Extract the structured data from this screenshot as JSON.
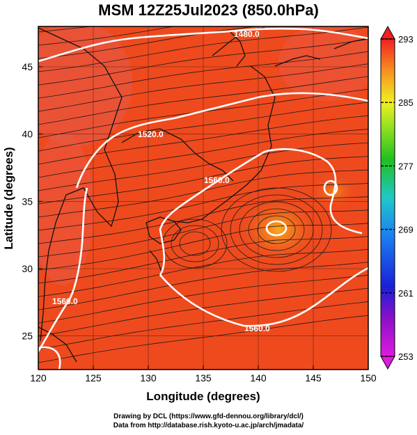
{
  "title": "MSM 12Z25Jul2023 (850.0hPa)",
  "xlabel": "Longitude (degrees)",
  "ylabel": "Latitude  (degrees)",
  "x_ticks": [
    "120",
    "125",
    "130",
    "135",
    "140",
    "145",
    "150"
  ],
  "y_ticks": [
    "25",
    "30",
    "35",
    "40",
    "45"
  ],
  "colorbar_ticks": [
    "293",
    "285",
    "277",
    "269",
    "261",
    "253"
  ],
  "contour_labels": [
    "1480.0",
    "1520.0",
    "1560.0",
    "1560.0",
    "1560.0"
  ],
  "credit_line1": "Drawing by DCL (https://www.gfd-dennou.org/library/dcl/)",
  "credit_line2": "Data from http://database.rish.kyoto-u.ac.jp/arch/jmadata/",
  "colors": {
    "field_base": "#ee4a1e",
    "field_warm": "#f5a020",
    "field_cool": "#e8605a",
    "contour": "#ffffff",
    "coastline": "#111111",
    "streamline": "#1a1a1a"
  },
  "chart_data": {
    "type": "map",
    "x_range": [
      120,
      150
    ],
    "y_range": [
      22.5,
      48
    ],
    "colorbar_range": [
      253,
      293
    ],
    "colorbar_levels": [
      253,
      261,
      269,
      277,
      285,
      293
    ],
    "geopotential_contours": [
      1480,
      1520,
      1560
    ]
  }
}
